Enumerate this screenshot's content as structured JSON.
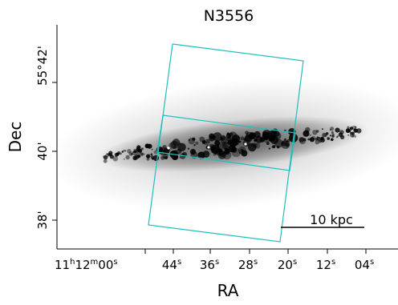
{
  "title": "N3556",
  "xlabel": "RA",
  "ylabel": "Dec",
  "x_ticks": [
    {
      "h": "11",
      "m": "12",
      "s": "00",
      "label_type": "full"
    },
    {
      "s": "44",
      "label_type": "sec"
    },
    {
      "s": "36",
      "label_type": "sec"
    },
    {
      "s": "28",
      "label_type": "sec"
    },
    {
      "s": "20",
      "label_type": "sec"
    },
    {
      "s": "12",
      "label_type": "sec"
    },
    {
      "s": "04",
      "label_type": "sec"
    }
  ],
  "x_tick_text": [
    "11h12m00s",
    "44s",
    "36s",
    "28s",
    "20s",
    "12s",
    "04s"
  ],
  "y_tick_text": [
    "55°42'",
    "40'",
    "38'"
  ],
  "scalebar": {
    "label": "10 kpc"
  },
  "colors": {
    "footprint": "#1fbfbf",
    "galaxy": "#000000",
    "axes": "#000000"
  }
}
